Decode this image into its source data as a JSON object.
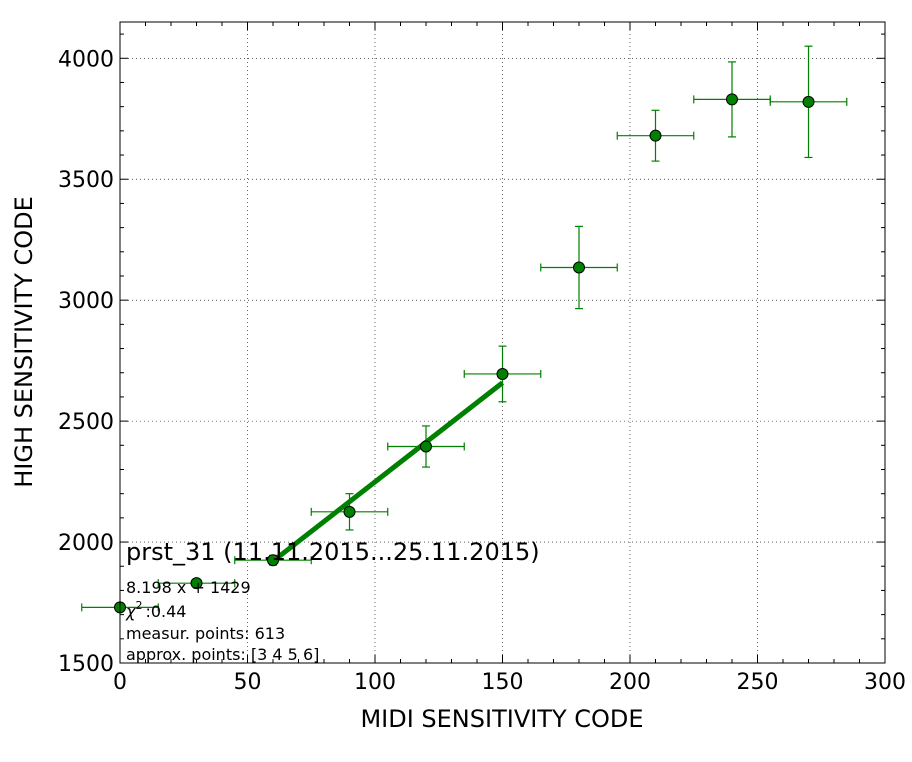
{
  "chart_data": {
    "type": "scatter",
    "xlabel": "MIDI SENSITIVITY CODE",
    "ylabel": "HIGH SENSITIVITY CODE",
    "xlim": [
      0,
      300
    ],
    "ylim": [
      1500,
      4150
    ],
    "xticks": [
      0,
      50,
      100,
      150,
      200,
      250,
      300
    ],
    "yticks": [
      1500,
      2000,
      2500,
      3000,
      3500,
      4000
    ],
    "grid": true,
    "marker_color": "#008000",
    "line_color": "#008000",
    "points": [
      {
        "x": 0,
        "y": 1730,
        "xerr": 15,
        "yerr": 0
      },
      {
        "x": 30,
        "y": 1830,
        "xerr": 15,
        "yerr": 0
      },
      {
        "x": 60,
        "y": 1925,
        "xerr": 15,
        "yerr": 20
      },
      {
        "x": 90,
        "y": 2125,
        "xerr": 15,
        "yerr": 75
      },
      {
        "x": 120,
        "y": 2395,
        "xerr": 15,
        "yerr": 85
      },
      {
        "x": 150,
        "y": 2695,
        "xerr": 15,
        "yerr": 115
      },
      {
        "x": 180,
        "y": 3135,
        "xerr": 15,
        "yerr": 170
      },
      {
        "x": 210,
        "y": 3680,
        "xerr": 15,
        "yerr": 105
      },
      {
        "x": 240,
        "y": 3830,
        "xerr": 15,
        "yerr": 155
      },
      {
        "x": 270,
        "y": 3820,
        "xerr": 15,
        "yerr": 230
      }
    ],
    "fit": {
      "slope": 8.198,
      "intercept": 1429,
      "x_range": [
        60,
        150
      ]
    },
    "annotation": {
      "title": "prst_31 (11.11.2015...25.11.2015)",
      "fit_text": "8.198 x + 1429",
      "chi_label": "χ",
      "chi_sup": "2",
      "chi_value": ":0.44",
      "measur_points": "measur. points: 613",
      "approx_points": "approx. points: [3 4 5 6]"
    }
  }
}
